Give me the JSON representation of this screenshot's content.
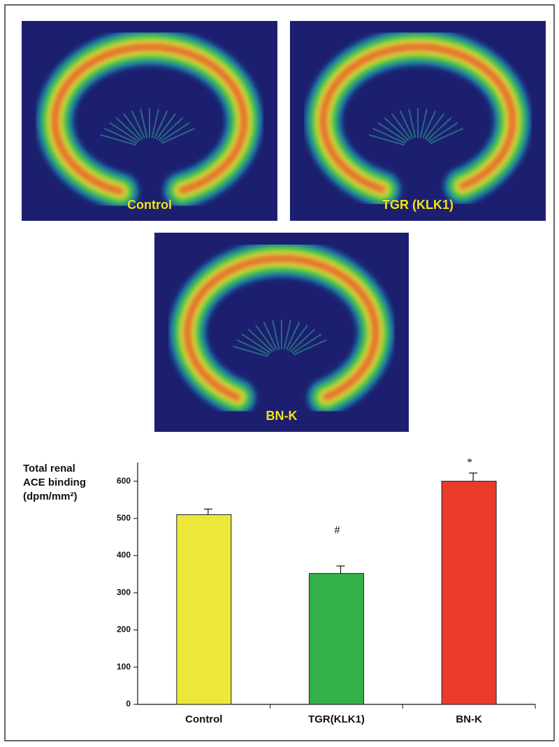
{
  "panels": [
    {
      "label": "Control"
    },
    {
      "label": "TGR (KLK1)"
    },
    {
      "label": "BN-K"
    }
  ],
  "chart_data": {
    "type": "bar",
    "y_label": [
      "Total renal",
      "ACE binding",
      "(dpm/mm²)"
    ],
    "categories": [
      "Control",
      "TGR(KLK1)",
      "BN-K"
    ],
    "values": [
      510,
      352,
      600
    ],
    "errors": [
      15,
      20,
      22
    ],
    "markers": [
      null,
      "#",
      "*"
    ],
    "colors": [
      "#ebe83a",
      "#34b04a",
      "#ea3a2c"
    ],
    "ylim": [
      0,
      650
    ],
    "yticks": [
      0,
      100,
      200,
      300,
      400,
      500,
      600
    ]
  }
}
